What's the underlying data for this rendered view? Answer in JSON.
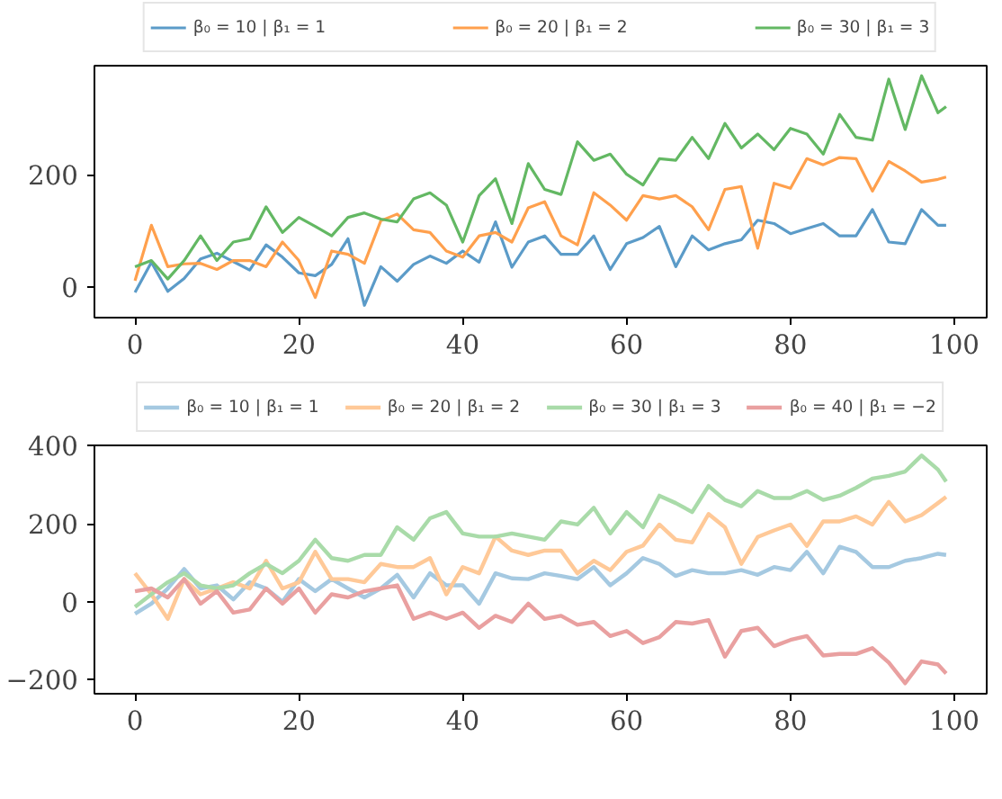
{
  "chart_data": [
    {
      "type": "line",
      "legend": "top",
      "xlim": [
        -4.95,
        103.95
      ],
      "ylim": [
        -55,
        395
      ],
      "xticks": [
        0,
        20,
        40,
        60,
        80,
        100
      ],
      "yticks": [
        0,
        200
      ],
      "x": [
        0,
        2,
        4,
        6,
        8,
        10,
        12,
        14,
        16,
        18,
        20,
        22,
        24,
        26,
        28,
        30,
        32,
        34,
        36,
        38,
        40,
        42,
        44,
        46,
        48,
        50,
        52,
        54,
        56,
        58,
        60,
        62,
        64,
        66,
        68,
        70,
        72,
        74,
        76,
        78,
        80,
        82,
        84,
        86,
        88,
        90,
        92,
        94,
        96,
        98,
        99
      ],
      "series": [
        {
          "name": "β₀ = 10 | β₁ = 1",
          "color": "#5b9bc8",
          "values": [
            -10,
            44,
            -8,
            15,
            50,
            60,
            45,
            30,
            75,
            53,
            25,
            20,
            40,
            86,
            -33,
            36,
            10,
            40,
            55,
            42,
            64,
            44,
            116,
            35,
            80,
            91,
            58,
            58,
            91,
            31,
            77,
            88,
            108,
            36,
            91,
            66,
            77,
            84,
            119,
            113,
            95,
            104,
            113,
            91,
            91,
            138,
            80,
            77,
            138,
            110,
            110
          ]
        },
        {
          "name": "β₀ = 20 | β₁ = 2",
          "color": "#ffa04d",
          "values": [
            11,
            110,
            36,
            41,
            42,
            31,
            47,
            47,
            36,
            80,
            47,
            -19,
            64,
            58,
            42,
            118,
            130,
            102,
            97,
            64,
            53,
            91,
            97,
            80,
            141,
            152,
            91,
            75,
            168,
            146,
            119,
            163,
            157,
            163,
            143,
            102,
            174,
            179,
            69,
            185,
            176,
            229,
            218,
            231,
            229,
            171,
            224,
            207,
            187,
            192,
            196
          ]
        },
        {
          "name": "β₀ = 30 | β₁ = 3",
          "color": "#63b863",
          "values": [
            36,
            47,
            14,
            47,
            91,
            47,
            80,
            86,
            143,
            97,
            124,
            108,
            91,
            124,
            132,
            121,
            116,
            157,
            168,
            146,
            80,
            163,
            193,
            113,
            220,
            174,
            165,
            259,
            226,
            237,
            201,
            182,
            229,
            226,
            267,
            229,
            292,
            248,
            273,
            245,
            283,
            273,
            237,
            308,
            267,
            262,
            371,
            281,
            377,
            311,
            322
          ]
        }
      ]
    },
    {
      "type": "line",
      "legend": "top",
      "xlim": [
        -4.95,
        103.95
      ],
      "ylim": [
        -236,
        401
      ],
      "xticks": [
        0,
        20,
        40,
        60,
        80,
        100
      ],
      "yticks": [
        {
          "value": -200,
          "label": "−200"
        },
        0,
        200,
        400
      ],
      "x": [
        0,
        2,
        4,
        6,
        8,
        10,
        12,
        14,
        16,
        18,
        20,
        22,
        24,
        26,
        28,
        30,
        32,
        34,
        36,
        38,
        40,
        42,
        44,
        46,
        48,
        50,
        52,
        54,
        56,
        58,
        60,
        62,
        64,
        66,
        68,
        70,
        72,
        74,
        76,
        78,
        80,
        82,
        84,
        86,
        88,
        90,
        92,
        94,
        96,
        98,
        99
      ],
      "series": [
        {
          "name": "β₀ = 10 | β₁ = 1",
          "color": "#a5c9e1",
          "values": [
            -31,
            -5,
            34,
            84,
            34,
            42,
            6,
            50,
            34,
            0,
            58,
            27,
            58,
            34,
            11,
            34,
            69,
            11,
            73,
            42,
            42,
            -5,
            73,
            60,
            58,
            73,
            66,
            58,
            89,
            42,
            73,
            112,
            97,
            66,
            81,
            73,
            73,
            81,
            69,
            89,
            81,
            128,
            73,
            141,
            128,
            89,
            89,
            105,
            112,
            123,
            120
          ]
        },
        {
          "name": "β₀ = 20 | β₁ = 2",
          "color": "#ffc998",
          "values": [
            73,
            19,
            -44,
            58,
            19,
            34,
            50,
            34,
            105,
            34,
            50,
            128,
            58,
            58,
            50,
            97,
            89,
            89,
            112,
            19,
            89,
            73,
            167,
            131,
            120,
            131,
            131,
            73,
            105,
            81,
            128,
            144,
            198,
            159,
            152,
            225,
            191,
            97,
            166,
            183,
            198,
            143,
            206,
            206,
            219,
            198,
            256,
            206,
            222,
            253,
            269
          ]
        },
        {
          "name": "β₀ = 30 | β₁ = 3",
          "color": "#a9dba9",
          "values": [
            -13,
            19,
            50,
            73,
            42,
            34,
            42,
            73,
            97,
            73,
            105,
            159,
            112,
            105,
            120,
            120,
            191,
            159,
            214,
            230,
            175,
            167,
            167,
            175,
            167,
            159,
            206,
            198,
            241,
            175,
            230,
            191,
            272,
            253,
            230,
            297,
            261,
            245,
            284,
            266,
            266,
            284,
            261,
            272,
            292,
            316,
            323,
            334,
            375,
            339,
            308
          ]
        },
        {
          "name": "β₀ = 40 | β₁ = −2",
          "color": "#e9a0a0",
          "values": [
            27,
            34,
            11,
            58,
            -5,
            27,
            -28,
            -20,
            34,
            -5,
            34,
            -28,
            19,
            11,
            27,
            34,
            42,
            -44,
            -28,
            -44,
            -28,
            -67,
            -36,
            -52,
            -5,
            -44,
            -36,
            -59,
            -52,
            -88,
            -75,
            -106,
            -91,
            -52,
            -56,
            -47,
            -141,
            -75,
            -67,
            -114,
            -98,
            -88,
            -138,
            -134,
            -134,
            -119,
            -156,
            -209,
            -153,
            -161,
            -184
          ]
        }
      ]
    }
  ]
}
